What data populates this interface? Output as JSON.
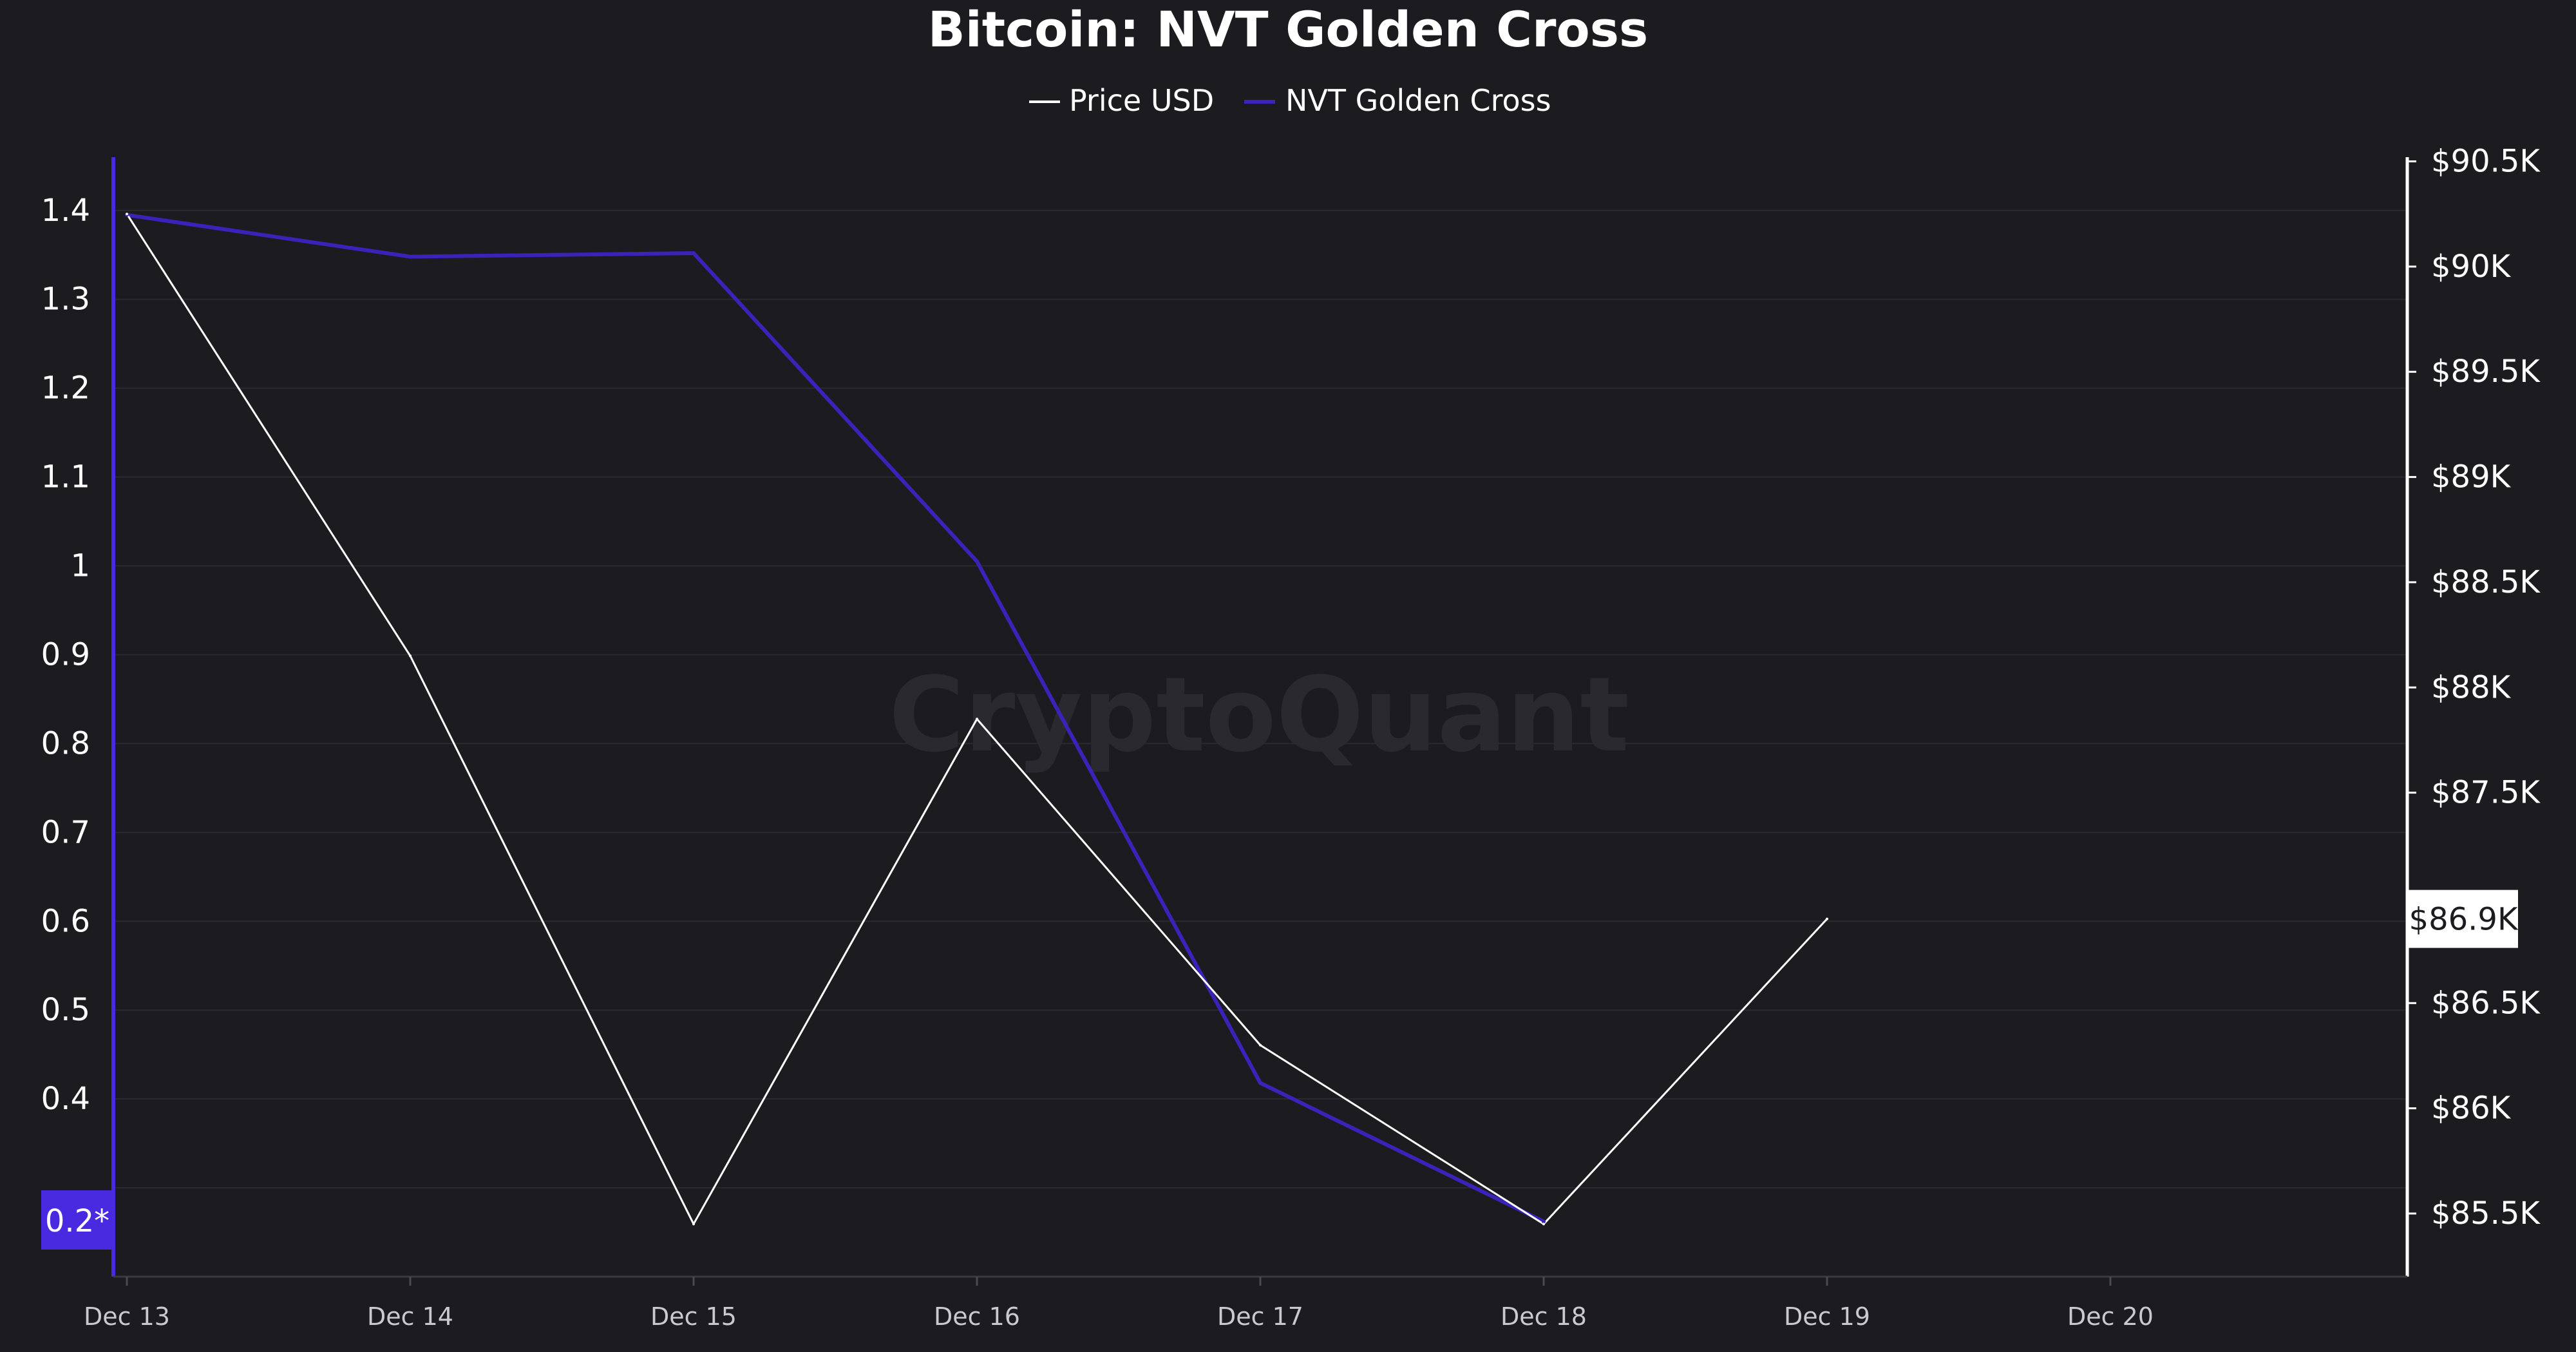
{
  "colors": {
    "background": "#1c1b20",
    "price": "#ffffff",
    "nvt": "#3b22b8",
    "nvt_axis": "#4a2ae0",
    "grid": "#2b2a31",
    "text": "#ffffff",
    "x_tick_text": "#c9c9cf"
  },
  "watermark": "CryptoQuant",
  "chart_data": {
    "type": "line",
    "title": "Bitcoin: NVT Golden Cross",
    "legend_position": "top-center",
    "grid": true,
    "x": [
      "Dec 13",
      "Dec 14",
      "Dec 15",
      "Dec 16",
      "Dec 17",
      "Dec 18",
      "Dec 19",
      "Dec 20"
    ],
    "x_tick_labels": [
      "Dec 13",
      "Dec 14",
      "Dec 15",
      "Dec 16",
      "Dec 17",
      "Dec 18",
      "Dec 19",
      "Dec 20"
    ],
    "series": [
      {
        "name": "Price USD",
        "axis": "right",
        "values": [
          90250,
          88150,
          85450,
          87850,
          86300,
          85450,
          86900,
          null
        ]
      },
      {
        "name": "NVT Golden Cross",
        "axis": "left",
        "values": [
          1.395,
          1.348,
          1.352,
          1.005,
          0.418,
          0.262,
          null,
          null
        ]
      }
    ],
    "y_left": {
      "range": [
        0.2,
        1.46
      ],
      "ticks": [
        1.4,
        1.3,
        1.2,
        1.1,
        1,
        0.9,
        0.8,
        0.7,
        0.6,
        0.5,
        0.4
      ],
      "tick_labels": [
        "1.4",
        "1.3",
        "1.2",
        "1.1",
        "1",
        "0.9",
        "0.8",
        "0.7",
        "0.6",
        "0.5",
        "0.4"
      ],
      "badge_value": 0.2,
      "badge_label": "0.2*"
    },
    "y_right": {
      "range": [
        85200,
        90520
      ],
      "ticks": [
        90500,
        90000,
        89500,
        89000,
        88500,
        88000,
        87500,
        86500,
        86000,
        85500
      ],
      "tick_labels": [
        "$90.5K",
        "$90K",
        "$89.5K",
        "$89K",
        "$88.5K",
        "$88K",
        "$87.5K",
        "$86.5K",
        "$86K",
        "$85.5K"
      ],
      "current_value": 86900,
      "current_label": "$86.9K"
    }
  }
}
